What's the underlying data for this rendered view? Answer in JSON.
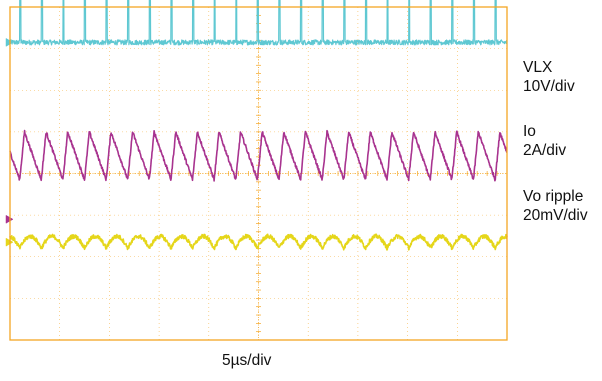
{
  "chart_data": {
    "type": "line",
    "title": "",
    "xlabel": "5µs/div",
    "ylabel": "",
    "grid": true,
    "x_divisions": 10,
    "y_divisions": 8,
    "x_per_div": "5µs",
    "frame_color": "#f5a623",
    "series": [
      {
        "name": "VLX",
        "scale": "10V/div",
        "color": "#5fc8d2",
        "waveform": "pulse",
        "periods_on_screen": 23,
        "ground_marker_div": 3.15,
        "baseline_div": 3.15,
        "peak_div": 5.45,
        "noise_div": 0.06
      },
      {
        "name": "Io",
        "scale": "2A/div",
        "color": "#a8338f",
        "waveform": "sawtooth",
        "periods_on_screen": 23,
        "ground_marker_div": -1.1,
        "high_div": 1.0,
        "low_div": -0.15,
        "rise_fraction": 0.22
      },
      {
        "name": "Vo ripple",
        "scale": "20mV/div",
        "color": "#e5d61a",
        "waveform": "ripple",
        "periods_on_screen": 23,
        "ground_marker_div": -1.65,
        "center_div": -1.65,
        "amplitude_div": 0.28,
        "noise_div": 0.05
      }
    ]
  },
  "labels": {
    "ch1_name": "VLX",
    "ch1_scale": "10V/div",
    "ch2_name": "Io",
    "ch2_scale": "2A/div",
    "ch3_name": "Vo ripple",
    "ch3_scale": "20mV/div",
    "time_scale": "5µs/div"
  }
}
